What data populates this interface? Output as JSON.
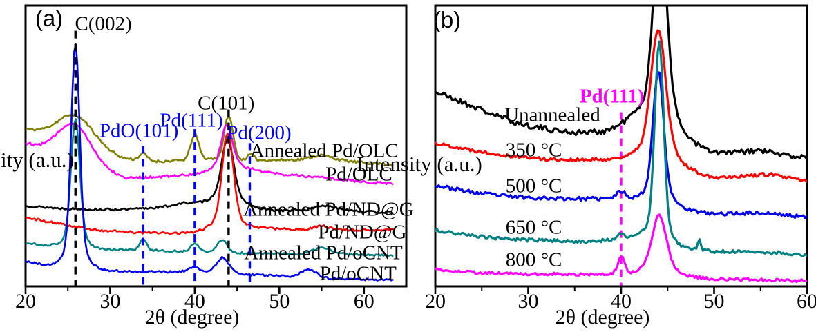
{
  "figure": {
    "background": "#ffffff"
  },
  "chart_data": [
    {
      "id": "a",
      "type": "line",
      "panel_label": "(a)",
      "xlabel": "2θ (degree)",
      "ylabel": "Intensity (a.u.)",
      "xlim": [
        20,
        65
      ],
      "x_end": 63.3,
      "x_ticks": [
        20,
        30,
        40,
        50,
        60
      ],
      "x_minor_ticks": [
        25,
        35,
        45,
        55
      ],
      "y_units": "arbitrary intensity, 0-100 of panel height",
      "grid": false,
      "dash_over_curves": true,
      "dashed_lines": [
        {
          "x": 25.9,
          "color": "#000000",
          "top_u": 91
        },
        {
          "x": 44.0,
          "color": "#000000",
          "top_u": 63
        },
        {
          "x": 33.9,
          "color": "#0000FF",
          "top_u": 50
        },
        {
          "x": 40.0,
          "color": "#0000FF",
          "top_u": 56
        },
        {
          "x": 46.5,
          "color": "#0000FF",
          "top_u": 51
        }
      ],
      "peak_annotations": [
        {
          "text": "C(002)",
          "x": 29.2,
          "u": 93.4,
          "color": "#000000"
        },
        {
          "text": "PdO(101)",
          "x": 33.4,
          "u": 55.3,
          "color": "#0000FF"
        },
        {
          "text": "Pd(111)",
          "x": 39.6,
          "u": 59.0,
          "color": "#0000FF"
        },
        {
          "text": "C(101)",
          "x": 43.7,
          "u": 65.1,
          "color": "#000000"
        },
        {
          "text": "Pd(200)",
          "x": 47.6,
          "u": 54.5,
          "color": "#0000FF"
        }
      ],
      "series": [
        {
          "name": "Annealed Pd/OLC",
          "color": "#808000",
          "seed": 11,
          "noise": 0.45,
          "width": 2.6,
          "label": "Annealed Pd/OLC",
          "label_x": 55.3,
          "label_u": 48.2,
          "base": [
            [
              20,
              56
            ],
            [
              24,
              52.5
            ],
            [
              28,
              49
            ],
            [
              31.5,
              45.5
            ],
            [
              36,
              44.5
            ],
            [
              42,
              45.5
            ],
            [
              46,
              45
            ],
            [
              50,
              45
            ],
            [
              54,
              45.3
            ],
            [
              57,
              45
            ],
            [
              60,
              44
            ],
            [
              63.3,
              43.5
            ]
          ],
          "peaks": [
            [
              25.9,
              10,
              5
            ],
            [
              33.9,
              2.5,
              1.0
            ],
            [
              40,
              9,
              1.1
            ],
            [
              44,
              15.5,
              1.2
            ],
            [
              46.6,
              2,
              0.9
            ],
            [
              55,
              1.5,
              2.5
            ]
          ]
        },
        {
          "name": "Pd/OLC",
          "color": "#FF00FF",
          "seed": 12,
          "noise": 0.45,
          "width": 2.6,
          "label": "Pd/OLC",
          "label_x": 59.4,
          "label_u": 39.8,
          "base": [
            [
              20,
              51
            ],
            [
              24,
              47
            ],
            [
              28,
              42.5
            ],
            [
              32,
              38.5
            ],
            [
              36,
              39
            ],
            [
              40,
              40
            ],
            [
              44,
              40.5
            ],
            [
              47,
              41.5
            ],
            [
              50,
              40
            ],
            [
              55,
              38.8
            ],
            [
              60,
              37.2
            ],
            [
              63.3,
              36.8
            ]
          ],
          "peaks": [
            [
              25.8,
              13,
              4.5
            ],
            [
              43.8,
              13,
              1.5
            ],
            [
              43.8,
              4,
              3.5
            ]
          ]
        },
        {
          "name": "Annealed Pd/ND@G",
          "color": "#000000",
          "seed": 13,
          "noise": 0.4,
          "width": 2.6,
          "label": "Annealed Pd/ND@G",
          "label_x": 55.8,
          "label_u": 27.3,
          "base": [
            [
              20,
              28.7
            ],
            [
              24,
              27.8
            ],
            [
              28,
              27.4
            ],
            [
              32,
              27.4
            ],
            [
              36,
              28.2
            ],
            [
              39,
              29.8
            ],
            [
              41.5,
              28.8
            ],
            [
              46,
              27.7
            ],
            [
              50,
              27
            ],
            [
              54,
              27.3
            ],
            [
              57,
              27.8
            ],
            [
              60,
              26.6
            ],
            [
              63.3,
              26.4
            ]
          ],
          "peaks": [
            [
              43.9,
              19,
              1.6
            ],
            [
              43.8,
              5,
              4
            ],
            [
              55,
              1.3,
              2
            ]
          ]
        },
        {
          "name": "Pd/ND@G",
          "color": "#FF0000",
          "seed": 14,
          "noise": 0.4,
          "width": 2.6,
          "label": "Pd/ND@G",
          "label_x": 59.8,
          "label_u": 19.2,
          "base": [
            [
              20,
              24.6
            ],
            [
              24,
              22.3
            ],
            [
              28,
              20.2
            ],
            [
              33,
              19.2
            ],
            [
              38,
              19
            ],
            [
              44,
              18.8
            ],
            [
              48,
              20.7
            ],
            [
              52,
              20.3
            ],
            [
              56,
              20.3
            ],
            [
              60,
              20.1
            ],
            [
              63.3,
              20
            ]
          ],
          "peaks": [
            [
              43.9,
              30,
              1.5
            ],
            [
              43.8,
              6,
              4
            ],
            [
              55,
              1.2,
              2
            ]
          ]
        },
        {
          "name": "Annealed Pd/oCNT",
          "color": "#008080",
          "seed": 15,
          "noise": 0.35,
          "width": 2.6,
          "label": "Annealed Pd/oCNT",
          "label_x": 55.2,
          "label_u": 11.8,
          "base": [
            [
              20,
              15.5
            ],
            [
              24,
              14
            ],
            [
              28,
              13.2
            ],
            [
              32,
              13
            ],
            [
              36,
              12.8
            ],
            [
              40,
              12.3
            ],
            [
              44,
              12
            ],
            [
              48,
              11.8
            ],
            [
              52,
              11.5
            ],
            [
              56,
              11.8
            ],
            [
              60,
              11.3
            ],
            [
              63.3,
              11
            ]
          ],
          "peaks": [
            [
              25.9,
              41,
              1.2
            ],
            [
              25.9,
              5,
              3
            ],
            [
              33.9,
              4,
              0.9
            ],
            [
              40,
              3,
              1.1
            ],
            [
              43.2,
              4.5,
              1.4
            ],
            [
              55,
              2,
              2.5
            ]
          ]
        },
        {
          "name": "Pd/oCNT",
          "color": "#0000EE",
          "seed": 16,
          "noise": 0.35,
          "width": 2.6,
          "label": "Pd/oCNT",
          "label_x": 59.3,
          "label_u": 4.4,
          "base": [
            [
              20,
              9
            ],
            [
              23,
              7.2
            ],
            [
              26,
              6.3
            ],
            [
              29,
              5.8
            ],
            [
              33,
              5.2
            ],
            [
              37,
              5.2
            ],
            [
              40,
              5.4
            ],
            [
              46,
              4.2
            ],
            [
              50,
              3.7
            ],
            [
              56,
              2.8
            ],
            [
              60,
              2.5
            ],
            [
              63.3,
              2.3
            ]
          ],
          "peaks": [
            [
              25.9,
              72,
              1.15
            ],
            [
              25.9,
              8,
              3
            ],
            [
              40,
              1.5,
              1.5
            ],
            [
              43.3,
              5.5,
              1.7
            ],
            [
              53.5,
              3,
              2
            ]
          ]
        }
      ]
    },
    {
      "id": "b",
      "type": "line",
      "panel_label": "(b)",
      "xlabel": "2θ (degree)",
      "ylabel": "Intensity (a.u.)",
      "xlim": [
        20,
        60
      ],
      "x_end": 60,
      "x_ticks": [
        20,
        30,
        40,
        50,
        60
      ],
      "x_minor_ticks": [
        25,
        35,
        45,
        55
      ],
      "y_units": "arbitrary intensity, 0-100 of panel height",
      "grid": false,
      "dash_over_curves": false,
      "dashed_lines": [
        {
          "x": 40.0,
          "color": "#FF00FF",
          "top_u": 62
        }
      ],
      "peak_annotations": [
        {
          "text": "Pd(111)",
          "x": 39.0,
          "u": 67.6,
          "color": "#FF00FF",
          "bold": true
        }
      ],
      "series": [
        {
          "name": "Unannealed",
          "color": "#000000",
          "seed": 21,
          "noise": 1.0,
          "width": 3.2,
          "label": "Unannealed",
          "label_x": 32.6,
          "label_u": 60.9,
          "base": [
            [
              20,
              69.3
            ],
            [
              23,
              65.5
            ],
            [
              26,
              61.5
            ],
            [
              29,
              58
            ],
            [
              32,
              56
            ],
            [
              35,
              54.8
            ],
            [
              38,
              55
            ],
            [
              41,
              56.5
            ],
            [
              47,
              50
            ],
            [
              50,
              47.4
            ],
            [
              53,
              47.8
            ],
            [
              55,
              48.4
            ],
            [
              58,
              46.5
            ],
            [
              60,
              46
            ]
          ],
          "peaks": [
            [
              44.2,
              62,
              1.7
            ],
            [
              44,
              12,
              5
            ]
          ]
        },
        {
          "name": "350 °C",
          "color": "#FF0000",
          "seed": 22,
          "noise": 0.6,
          "width": 3.2,
          "label": "350 °C",
          "label_x": 30.6,
          "label_u": 48.4,
          "base": [
            [
              20,
              51
            ],
            [
              24,
              48.5
            ],
            [
              28,
              46.5
            ],
            [
              32,
              45.3
            ],
            [
              36,
              45
            ],
            [
              40,
              45.3
            ],
            [
              44,
              44.5
            ],
            [
              47,
              41
            ],
            [
              50,
              38.8
            ],
            [
              54,
              39.5
            ],
            [
              56,
              40
            ],
            [
              58,
              38.5
            ],
            [
              60,
              37.6
            ]
          ],
          "peaks": [
            [
              44,
              40,
              1.8
            ],
            [
              44,
              7,
              4.5
            ]
          ]
        },
        {
          "name": "500 °C",
          "color": "#0000EE",
          "seed": 23,
          "noise": 0.65,
          "width": 3.2,
          "label": "500 °C",
          "label_x": 30.6,
          "label_u": 35.6,
          "base": [
            [
              20,
              36
            ],
            [
              24,
              33.5
            ],
            [
              28,
              32
            ],
            [
              32,
              31.4
            ],
            [
              36,
              31.2
            ],
            [
              40,
              31.3
            ],
            [
              44,
              29
            ],
            [
              47,
              27
            ],
            [
              50,
              25.8
            ],
            [
              54,
              26.2
            ],
            [
              56,
              26
            ],
            [
              60,
              24.6
            ]
          ],
          "peaks": [
            [
              40,
              2.5,
              1.2
            ],
            [
              44,
              42,
              1.3
            ],
            [
              44,
              6,
              3.5
            ]
          ]
        },
        {
          "name": "650 °C",
          "color": "#008080",
          "seed": 24,
          "noise": 0.6,
          "width": 3.2,
          "label": "650 °C",
          "label_x": 30.6,
          "label_u": 20.9,
          "base": [
            [
              20,
              20
            ],
            [
              24,
              18
            ],
            [
              28,
              16.8
            ],
            [
              32,
              16.3
            ],
            [
              36,
              16
            ],
            [
              39,
              16.5
            ],
            [
              42,
              17.5
            ],
            [
              46,
              14
            ],
            [
              48,
              13
            ],
            [
              50,
              12.5
            ],
            [
              54,
              12.2
            ],
            [
              57,
              12
            ],
            [
              60,
              11.1
            ]
          ],
          "peaks": [
            [
              44.1,
              66,
              1.1
            ],
            [
              44,
              6,
              3
            ],
            [
              40,
              2,
              1
            ],
            [
              48.4,
              3.5,
              0.45
            ]
          ]
        },
        {
          "name": "800 °C",
          "color": "#FF00FF",
          "seed": 25,
          "noise": 0.5,
          "width": 3.2,
          "label": "800 °C",
          "label_x": 30.6,
          "label_u": 9.3,
          "base": [
            [
              20,
              6.1
            ],
            [
              24,
              5
            ],
            [
              28,
              4.5
            ],
            [
              32,
              4.4
            ],
            [
              36,
              4.3
            ],
            [
              40,
              4.4
            ],
            [
              44,
              4.3
            ],
            [
              47,
              3.5
            ],
            [
              50,
              2.7
            ],
            [
              55,
              2.4
            ],
            [
              60,
              2
            ]
          ],
          "peaks": [
            [
              40,
              6,
              0.9
            ],
            [
              44.1,
              17,
              1.7
            ],
            [
              44,
              4,
              3.5
            ]
          ]
        }
      ]
    }
  ]
}
